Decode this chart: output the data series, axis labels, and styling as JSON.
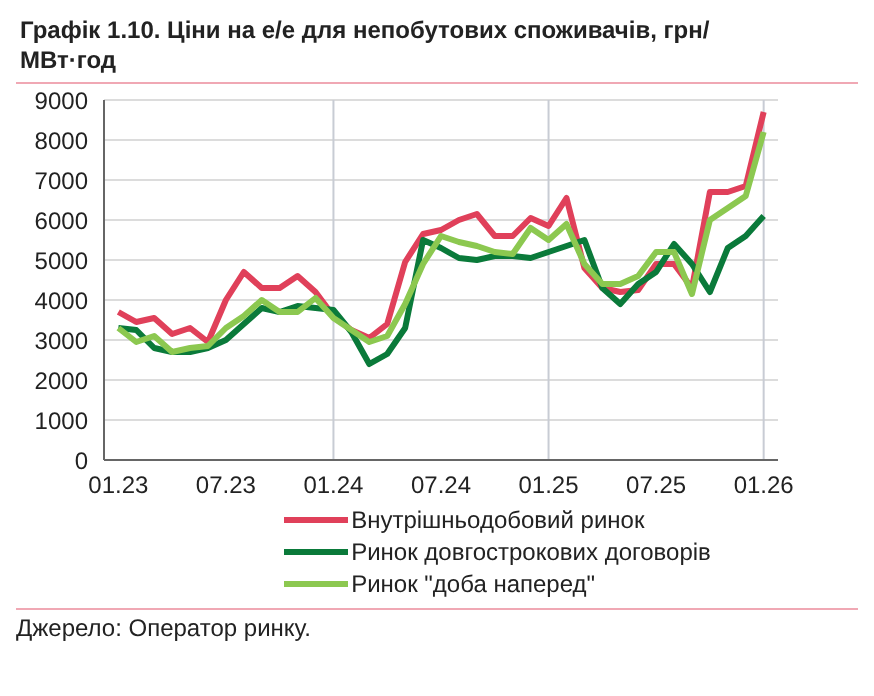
{
  "chart_data": {
    "type": "line",
    "title": "Графік 1.10. Ціни на е/е для непобутових споживачів, грн/МВт·год",
    "categories": [
      "01.23",
      null,
      null,
      null,
      null,
      null,
      "07.23",
      null,
      null,
      null,
      null,
      null,
      "01.24",
      null,
      null,
      null,
      null,
      null,
      "07.24",
      null,
      null,
      null,
      null,
      null,
      "01.25",
      null,
      null,
      null,
      null,
      null,
      "07.25",
      null,
      null,
      null,
      null,
      null,
      "01.26"
    ],
    "series": [
      {
        "name": "Внутрішньодобовий ринок",
        "color": "#e0405a",
        "values": [
          3700,
          3450,
          3550,
          3150,
          3300,
          2950,
          4000,
          4700,
          4300,
          4300,
          4600,
          4200,
          3600,
          3250,
          3050,
          3400,
          4950,
          5650,
          5750,
          6000,
          6150,
          5600,
          5600,
          6050,
          5850,
          6550,
          4800,
          4300,
          4200,
          4250,
          4900,
          4900,
          4300,
          6700,
          6700,
          6850,
          8700
        ]
      },
      {
        "name": "Ринок довгострокових договорів",
        "color": "#0a7a3a",
        "values": [
          3300,
          3250,
          2800,
          2700,
          2700,
          2800,
          3000,
          3400,
          3800,
          3700,
          3850,
          3800,
          3750,
          3200,
          2400,
          2650,
          3300,
          5500,
          5300,
          5050,
          5000,
          5100,
          5100,
          5050,
          5200,
          5350,
          5500,
          4300,
          3900,
          4400,
          4700,
          5400,
          4900,
          4200,
          5300,
          5600,
          6100
        ]
      },
      {
        "name": "Ринок \"доба наперед\"",
        "color": "#8cc850",
        "values": [
          3300,
          2950,
          3100,
          2700,
          2800,
          2850,
          3300,
          3600,
          4000,
          3700,
          3700,
          4050,
          3550,
          3250,
          2950,
          3100,
          3900,
          4900,
          5600,
          5450,
          5350,
          5200,
          5150,
          5800,
          5500,
          5900,
          4900,
          4400,
          4400,
          4600,
          5200,
          5200,
          4150,
          6000,
          6300,
          6600,
          8200
        ]
      }
    ],
    "ylim": [
      0,
      9000
    ],
    "yticks": [
      0,
      1000,
      2000,
      3000,
      4000,
      5000,
      6000,
      7000,
      8000,
      9000
    ],
    "grid": "y",
    "ref_lines": [
      {
        "axis": "x",
        "value": "01.24",
        "color": "#c8ccd4"
      },
      {
        "axis": "x",
        "value": "01.25",
        "color": "#c8ccd4"
      },
      {
        "axis": "x",
        "value": "01.26",
        "color": "#c8ccd4"
      }
    ],
    "legend": "bottom",
    "marker": "none",
    "line_style": "solid",
    "annotations": [
      "Джерело: Оператор ринку."
    ]
  }
}
